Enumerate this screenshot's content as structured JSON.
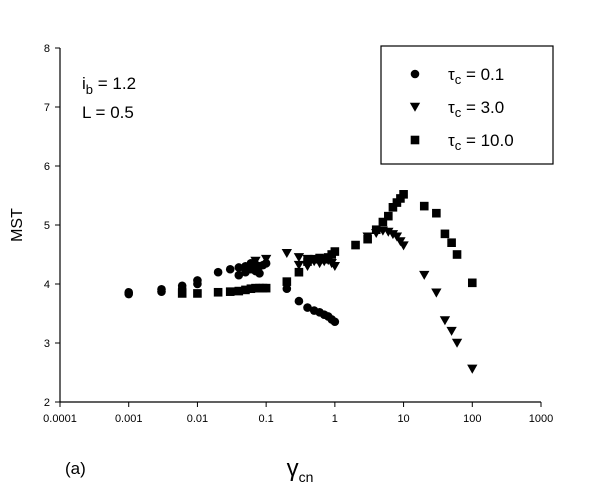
{
  "chart_data": {
    "type": "scatter",
    "xlabel": "γ",
    "xlabel_sub": "cn",
    "ylabel": "MST",
    "x_scale": "log",
    "xlim": [
      0.0001,
      1000
    ],
    "ylim": [
      2,
      8
    ],
    "x_ticks": [
      "0.0001",
      "0.001",
      "0.01",
      "0.1",
      "1",
      "10",
      "100",
      "1000"
    ],
    "y_ticks": [
      "2",
      "3",
      "4",
      "5",
      "6",
      "7",
      "8"
    ],
    "grid": false,
    "panel_label": "(a)",
    "annotations": [
      {
        "text": "i",
        "sub": "b",
        "rest": " = 1.2"
      },
      {
        "text": "L = 0.5",
        "sub": "",
        "rest": ""
      }
    ],
    "legend_position": "top-right",
    "series": [
      {
        "name": "τ",
        "name_sub": "c",
        "name_rest": " = 0.1",
        "marker": "circle",
        "points": [
          [
            0.001,
            3.86
          ],
          [
            0.001,
            3.83
          ],
          [
            0.003,
            3.91
          ],
          [
            0.003,
            3.87
          ],
          [
            0.006,
            3.97
          ],
          [
            0.006,
            3.92
          ],
          [
            0.01,
            4.06
          ],
          [
            0.01,
            4.0
          ],
          [
            0.02,
            4.2
          ],
          [
            0.03,
            4.25
          ],
          [
            0.04,
            4.28
          ],
          [
            0.05,
            4.3
          ],
          [
            0.06,
            4.35
          ],
          [
            0.07,
            4.33
          ],
          [
            0.08,
            4.3
          ],
          [
            0.09,
            4.32
          ],
          [
            0.1,
            4.35
          ],
          [
            0.04,
            4.15
          ],
          [
            0.05,
            4.2
          ],
          [
            0.06,
            4.25
          ],
          [
            0.07,
            4.22
          ],
          [
            0.08,
            4.18
          ],
          [
            0.2,
            3.92
          ],
          [
            0.3,
            3.71
          ],
          [
            0.4,
            3.6
          ],
          [
            0.5,
            3.55
          ],
          [
            0.6,
            3.52
          ],
          [
            0.7,
            3.48
          ],
          [
            0.8,
            3.45
          ],
          [
            0.9,
            3.4
          ],
          [
            1.0,
            3.36
          ]
        ]
      },
      {
        "name": "τ",
        "name_sub": "c",
        "name_rest": " = 3.0",
        "marker": "triangle-down",
        "points": [
          [
            0.07,
            4.39
          ],
          [
            0.1,
            4.42
          ],
          [
            0.2,
            4.52
          ],
          [
            0.3,
            4.45
          ],
          [
            0.4,
            4.42
          ],
          [
            0.5,
            4.38
          ],
          [
            0.6,
            4.35
          ],
          [
            0.7,
            4.38
          ],
          [
            0.8,
            4.4
          ],
          [
            0.9,
            4.35
          ],
          [
            1.0,
            4.3
          ],
          [
            0.3,
            4.32
          ],
          [
            0.4,
            4.3
          ],
          [
            3,
            4.8
          ],
          [
            4,
            4.86
          ],
          [
            5,
            4.9
          ],
          [
            6,
            4.88
          ],
          [
            7,
            4.84
          ],
          [
            8,
            4.8
          ],
          [
            9,
            4.72
          ],
          [
            10,
            4.65
          ],
          [
            20,
            4.15
          ],
          [
            30,
            3.85
          ],
          [
            40,
            3.38
          ],
          [
            50,
            3.2
          ],
          [
            60,
            3.0
          ],
          [
            100,
            2.56
          ]
        ]
      },
      {
        "name": "τ",
        "name_sub": "c",
        "name_rest": " = 10.0",
        "marker": "square",
        "points": [
          [
            0.006,
            3.84
          ],
          [
            0.01,
            3.84
          ],
          [
            0.02,
            3.86
          ],
          [
            0.03,
            3.87
          ],
          [
            0.04,
            3.88
          ],
          [
            0.05,
            3.9
          ],
          [
            0.06,
            3.92
          ],
          [
            0.07,
            3.93
          ],
          [
            0.08,
            3.93
          ],
          [
            0.09,
            3.93
          ],
          [
            0.1,
            3.93
          ],
          [
            0.2,
            4.04
          ],
          [
            0.3,
            4.2
          ],
          [
            0.4,
            4.38
          ],
          [
            0.5,
            4.42
          ],
          [
            0.6,
            4.44
          ],
          [
            0.7,
            4.42
          ],
          [
            0.8,
            4.45
          ],
          [
            0.9,
            4.5
          ],
          [
            1.0,
            4.55
          ],
          [
            2,
            4.66
          ],
          [
            3,
            4.76
          ],
          [
            4,
            4.92
          ],
          [
            5,
            5.05
          ],
          [
            6,
            5.15
          ],
          [
            7,
            5.3
          ],
          [
            8,
            5.38
          ],
          [
            9,
            5.45
          ],
          [
            10,
            5.52
          ],
          [
            20,
            5.32
          ],
          [
            30,
            5.2
          ],
          [
            40,
            4.85
          ],
          [
            50,
            4.7
          ],
          [
            60,
            4.5
          ],
          [
            100,
            4.02
          ]
        ]
      }
    ]
  }
}
